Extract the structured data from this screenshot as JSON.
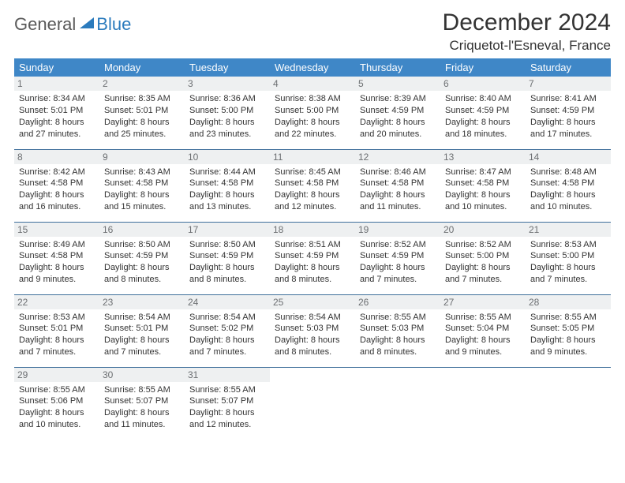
{
  "logo": {
    "text1": "General",
    "text2": "Blue",
    "color_general": "#5a5a5a",
    "color_blue": "#2b7bbd",
    "triangle_fill": "#2b7bbd"
  },
  "title": "December 2024",
  "location": "Criquetot-l'Esneval, France",
  "header_bg": "#3f87c7",
  "daynum_bg": "#eef0f1",
  "rule_color": "#3f6f9b",
  "days": [
    "Sunday",
    "Monday",
    "Tuesday",
    "Wednesday",
    "Thursday",
    "Friday",
    "Saturday"
  ],
  "weeks": [
    [
      {
        "n": "1",
        "sr": "Sunrise: 8:34 AM",
        "ss": "Sunset: 5:01 PM",
        "d1": "Daylight: 8 hours",
        "d2": "and 27 minutes."
      },
      {
        "n": "2",
        "sr": "Sunrise: 8:35 AM",
        "ss": "Sunset: 5:01 PM",
        "d1": "Daylight: 8 hours",
        "d2": "and 25 minutes."
      },
      {
        "n": "3",
        "sr": "Sunrise: 8:36 AM",
        "ss": "Sunset: 5:00 PM",
        "d1": "Daylight: 8 hours",
        "d2": "and 23 minutes."
      },
      {
        "n": "4",
        "sr": "Sunrise: 8:38 AM",
        "ss": "Sunset: 5:00 PM",
        "d1": "Daylight: 8 hours",
        "d2": "and 22 minutes."
      },
      {
        "n": "5",
        "sr": "Sunrise: 8:39 AM",
        "ss": "Sunset: 4:59 PM",
        "d1": "Daylight: 8 hours",
        "d2": "and 20 minutes."
      },
      {
        "n": "6",
        "sr": "Sunrise: 8:40 AM",
        "ss": "Sunset: 4:59 PM",
        "d1": "Daylight: 8 hours",
        "d2": "and 18 minutes."
      },
      {
        "n": "7",
        "sr": "Sunrise: 8:41 AM",
        "ss": "Sunset: 4:59 PM",
        "d1": "Daylight: 8 hours",
        "d2": "and 17 minutes."
      }
    ],
    [
      {
        "n": "8",
        "sr": "Sunrise: 8:42 AM",
        "ss": "Sunset: 4:58 PM",
        "d1": "Daylight: 8 hours",
        "d2": "and 16 minutes."
      },
      {
        "n": "9",
        "sr": "Sunrise: 8:43 AM",
        "ss": "Sunset: 4:58 PM",
        "d1": "Daylight: 8 hours",
        "d2": "and 15 minutes."
      },
      {
        "n": "10",
        "sr": "Sunrise: 8:44 AM",
        "ss": "Sunset: 4:58 PM",
        "d1": "Daylight: 8 hours",
        "d2": "and 13 minutes."
      },
      {
        "n": "11",
        "sr": "Sunrise: 8:45 AM",
        "ss": "Sunset: 4:58 PM",
        "d1": "Daylight: 8 hours",
        "d2": "and 12 minutes."
      },
      {
        "n": "12",
        "sr": "Sunrise: 8:46 AM",
        "ss": "Sunset: 4:58 PM",
        "d1": "Daylight: 8 hours",
        "d2": "and 11 minutes."
      },
      {
        "n": "13",
        "sr": "Sunrise: 8:47 AM",
        "ss": "Sunset: 4:58 PM",
        "d1": "Daylight: 8 hours",
        "d2": "and 10 minutes."
      },
      {
        "n": "14",
        "sr": "Sunrise: 8:48 AM",
        "ss": "Sunset: 4:58 PM",
        "d1": "Daylight: 8 hours",
        "d2": "and 10 minutes."
      }
    ],
    [
      {
        "n": "15",
        "sr": "Sunrise: 8:49 AM",
        "ss": "Sunset: 4:58 PM",
        "d1": "Daylight: 8 hours",
        "d2": "and 9 minutes."
      },
      {
        "n": "16",
        "sr": "Sunrise: 8:50 AM",
        "ss": "Sunset: 4:59 PM",
        "d1": "Daylight: 8 hours",
        "d2": "and 8 minutes."
      },
      {
        "n": "17",
        "sr": "Sunrise: 8:50 AM",
        "ss": "Sunset: 4:59 PM",
        "d1": "Daylight: 8 hours",
        "d2": "and 8 minutes."
      },
      {
        "n": "18",
        "sr": "Sunrise: 8:51 AM",
        "ss": "Sunset: 4:59 PM",
        "d1": "Daylight: 8 hours",
        "d2": "and 8 minutes."
      },
      {
        "n": "19",
        "sr": "Sunrise: 8:52 AM",
        "ss": "Sunset: 4:59 PM",
        "d1": "Daylight: 8 hours",
        "d2": "and 7 minutes."
      },
      {
        "n": "20",
        "sr": "Sunrise: 8:52 AM",
        "ss": "Sunset: 5:00 PM",
        "d1": "Daylight: 8 hours",
        "d2": "and 7 minutes."
      },
      {
        "n": "21",
        "sr": "Sunrise: 8:53 AM",
        "ss": "Sunset: 5:00 PM",
        "d1": "Daylight: 8 hours",
        "d2": "and 7 minutes."
      }
    ],
    [
      {
        "n": "22",
        "sr": "Sunrise: 8:53 AM",
        "ss": "Sunset: 5:01 PM",
        "d1": "Daylight: 8 hours",
        "d2": "and 7 minutes."
      },
      {
        "n": "23",
        "sr": "Sunrise: 8:54 AM",
        "ss": "Sunset: 5:01 PM",
        "d1": "Daylight: 8 hours",
        "d2": "and 7 minutes."
      },
      {
        "n": "24",
        "sr": "Sunrise: 8:54 AM",
        "ss": "Sunset: 5:02 PM",
        "d1": "Daylight: 8 hours",
        "d2": "and 7 minutes."
      },
      {
        "n": "25",
        "sr": "Sunrise: 8:54 AM",
        "ss": "Sunset: 5:03 PM",
        "d1": "Daylight: 8 hours",
        "d2": "and 8 minutes."
      },
      {
        "n": "26",
        "sr": "Sunrise: 8:55 AM",
        "ss": "Sunset: 5:03 PM",
        "d1": "Daylight: 8 hours",
        "d2": "and 8 minutes."
      },
      {
        "n": "27",
        "sr": "Sunrise: 8:55 AM",
        "ss": "Sunset: 5:04 PM",
        "d1": "Daylight: 8 hours",
        "d2": "and 9 minutes."
      },
      {
        "n": "28",
        "sr": "Sunrise: 8:55 AM",
        "ss": "Sunset: 5:05 PM",
        "d1": "Daylight: 8 hours",
        "d2": "and 9 minutes."
      }
    ],
    [
      {
        "n": "29",
        "sr": "Sunrise: 8:55 AM",
        "ss": "Sunset: 5:06 PM",
        "d1": "Daylight: 8 hours",
        "d2": "and 10 minutes."
      },
      {
        "n": "30",
        "sr": "Sunrise: 8:55 AM",
        "ss": "Sunset: 5:07 PM",
        "d1": "Daylight: 8 hours",
        "d2": "and 11 minutes."
      },
      {
        "n": "31",
        "sr": "Sunrise: 8:55 AM",
        "ss": "Sunset: 5:07 PM",
        "d1": "Daylight: 8 hours",
        "d2": "and 12 minutes."
      },
      null,
      null,
      null,
      null
    ]
  ]
}
